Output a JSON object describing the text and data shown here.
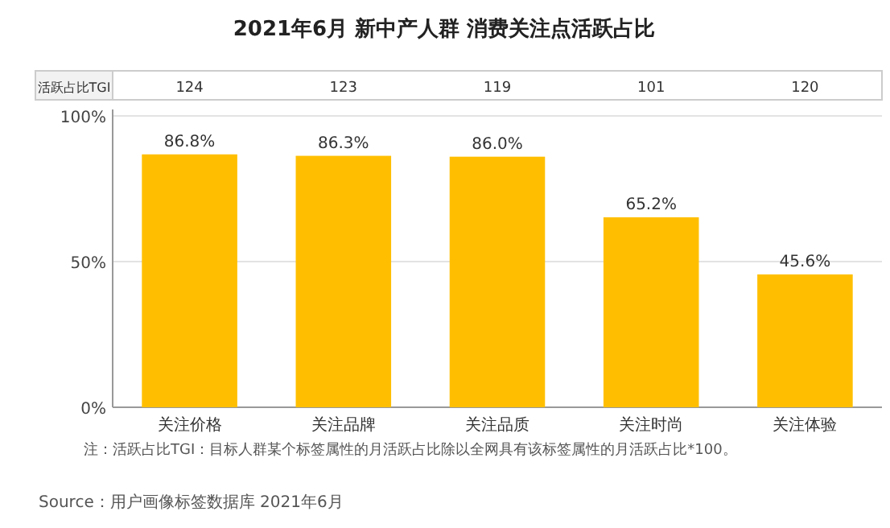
{
  "chart_data": {
    "type": "bar",
    "title": "2021年6月 新中产人群 消费关注点活跃占比",
    "categories": [
      "关注价格",
      "关注品牌",
      "关注品质",
      "关注时尚",
      "关注体验"
    ],
    "series": [
      {
        "color": "#ffbf00",
        "values": [
          86.8,
          86.3,
          86.0,
          65.2,
          45.6
        ],
        "value_labels": [
          "86.8%",
          "86.3%",
          "86.0%",
          "65.2%",
          "45.6%"
        ]
      }
    ],
    "ylim": [
      0,
      100
    ],
    "yticks": [
      {
        "value": 0,
        "label": "0%"
      },
      {
        "value": 50,
        "label": "50%"
      },
      {
        "value": 100,
        "label": "100%"
      }
    ],
    "grid": "y",
    "annotations": [
      "活跃占比TGI",
      "124",
      "123",
      "119",
      "101",
      "120",
      "注：活跃占比TGI：目标人群某个标签属性的月活跃占比除以全网具有该标签属性的月活跃占比*100。",
      "Source：用户画像标签数据库 2021年6月"
    ]
  }
}
